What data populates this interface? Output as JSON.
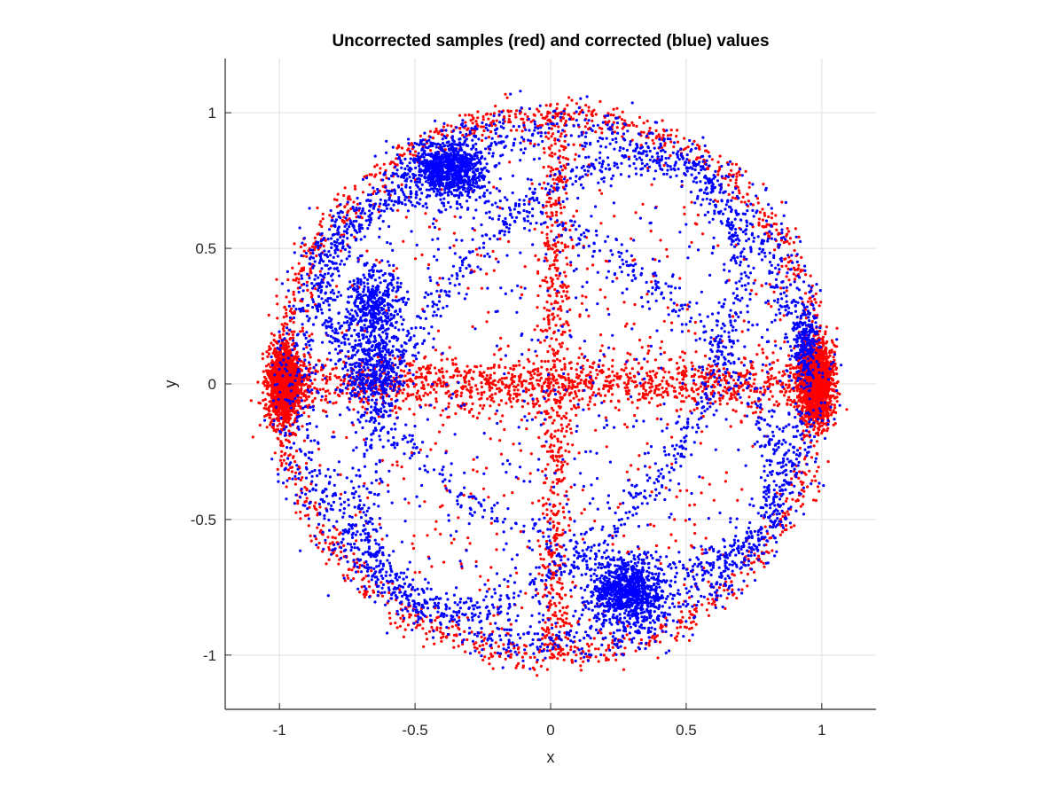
{
  "chart_data": {
    "type": "scatter",
    "title": "Uncorrected samples (red) and corrected (blue) values",
    "xlabel": "x",
    "ylabel": "y",
    "xlim": [
      -1.2,
      1.2
    ],
    "ylim": [
      -1.2,
      1.2
    ],
    "xticks": [
      -1,
      -0.5,
      0,
      0.5,
      1
    ],
    "yticks": [
      -1,
      -0.5,
      0,
      0.5,
      1
    ],
    "xtick_labels": [
      "-1",
      "-0.5",
      "0",
      "0.5",
      "1"
    ],
    "ytick_labels": [
      "-1",
      "-0.5",
      "0",
      "0.5",
      "1"
    ],
    "grid": true,
    "series": [
      {
        "color": "#ff0000",
        "structure": {
          "ring": {
            "radius": 1.0,
            "noise": 0.03,
            "count": 1400
          },
          "clusters": [
            {
              "x": -0.98,
              "y": 0.0,
              "sx": 0.03,
              "sy": 0.07,
              "count": 1500
            },
            {
              "x": 0.98,
              "y": 0.0,
              "sx": 0.03,
              "sy": 0.07,
              "count": 1500
            }
          ],
          "bands": [
            {
              "axis": "horizontal",
              "from": -0.95,
              "to": 0.95,
              "center": 0.0,
              "spread": 0.05,
              "count": 1300
            },
            {
              "axis": "vertical",
              "from": -1.0,
              "to": 1.0,
              "center": 0.02,
              "spread": 0.03,
              "count": 650
            }
          ],
          "scatter_count": 550
        }
      },
      {
        "color": "#0000ff",
        "structure": {
          "ring": {
            "radius": 0.95,
            "noise": 0.05,
            "count": 1800
          },
          "clusters": [
            {
              "x": -0.38,
              "y": 0.79,
              "sx": 0.07,
              "sy": 0.05,
              "count": 900
            },
            {
              "x": 0.28,
              "y": -0.77,
              "sx": 0.07,
              "sy": 0.06,
              "count": 900
            },
            {
              "x": -0.65,
              "y": 0.28,
              "sx": 0.06,
              "sy": 0.08,
              "count": 450
            },
            {
              "x": -0.65,
              "y": 0.05,
              "sx": 0.05,
              "sy": 0.07,
              "count": 350
            },
            {
              "x": 0.94,
              "y": 0.15,
              "sx": 0.02,
              "sy": 0.07,
              "count": 200
            }
          ],
          "tilted_circles": [
            {
              "radius": 0.95,
              "squash": 0.55,
              "angle_deg": 55,
              "count": 1000
            },
            {
              "radius": 0.95,
              "squash": 0.55,
              "angle_deg": -35,
              "count": 900
            }
          ],
          "scatter_count": 550
        }
      }
    ]
  }
}
